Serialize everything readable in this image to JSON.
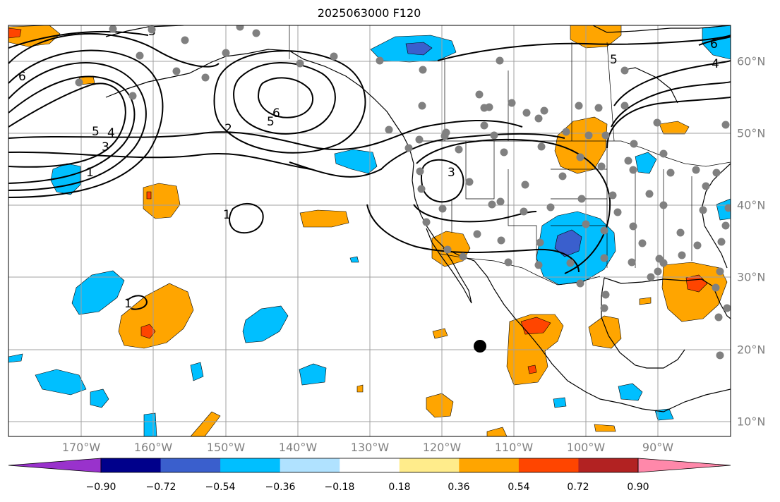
{
  "title": "2025063000 F120",
  "lon_labels": [
    "170°W",
    "160°W",
    "150°W",
    "140°W",
    "130°W",
    "120°W",
    "110°W",
    "100°W",
    "90°W"
  ],
  "lat_labels": [
    "60°N",
    "50°N",
    "40°N",
    "30°N",
    "20°N",
    "10°N"
  ],
  "colorbar": {
    "colors": [
      "#9932cc",
      "#00008b",
      "#3a5fcd",
      "#00bfff",
      "#b0e2ff",
      "#ffffff",
      "#ffec8b",
      "#ffa500",
      "#ff4500",
      "#b22222",
      "#ff88aa"
    ],
    "tick_labels": [
      "−0.90",
      "−0.72",
      "−0.54",
      "−0.36",
      "−0.18",
      "0.18",
      "0.36",
      "0.54",
      "0.72",
      "0.90"
    ]
  },
  "contour_labels": [
    "6",
    "5",
    "4",
    "3",
    "1",
    "2",
    "6",
    "5",
    "3",
    "1",
    "1",
    "5",
    "4",
    "6",
    "3"
  ],
  "colors": {
    "ocean_blue": "#00bfff",
    "orange": "#ffa500",
    "red": "#ff4500",
    "station": "#808080"
  }
}
